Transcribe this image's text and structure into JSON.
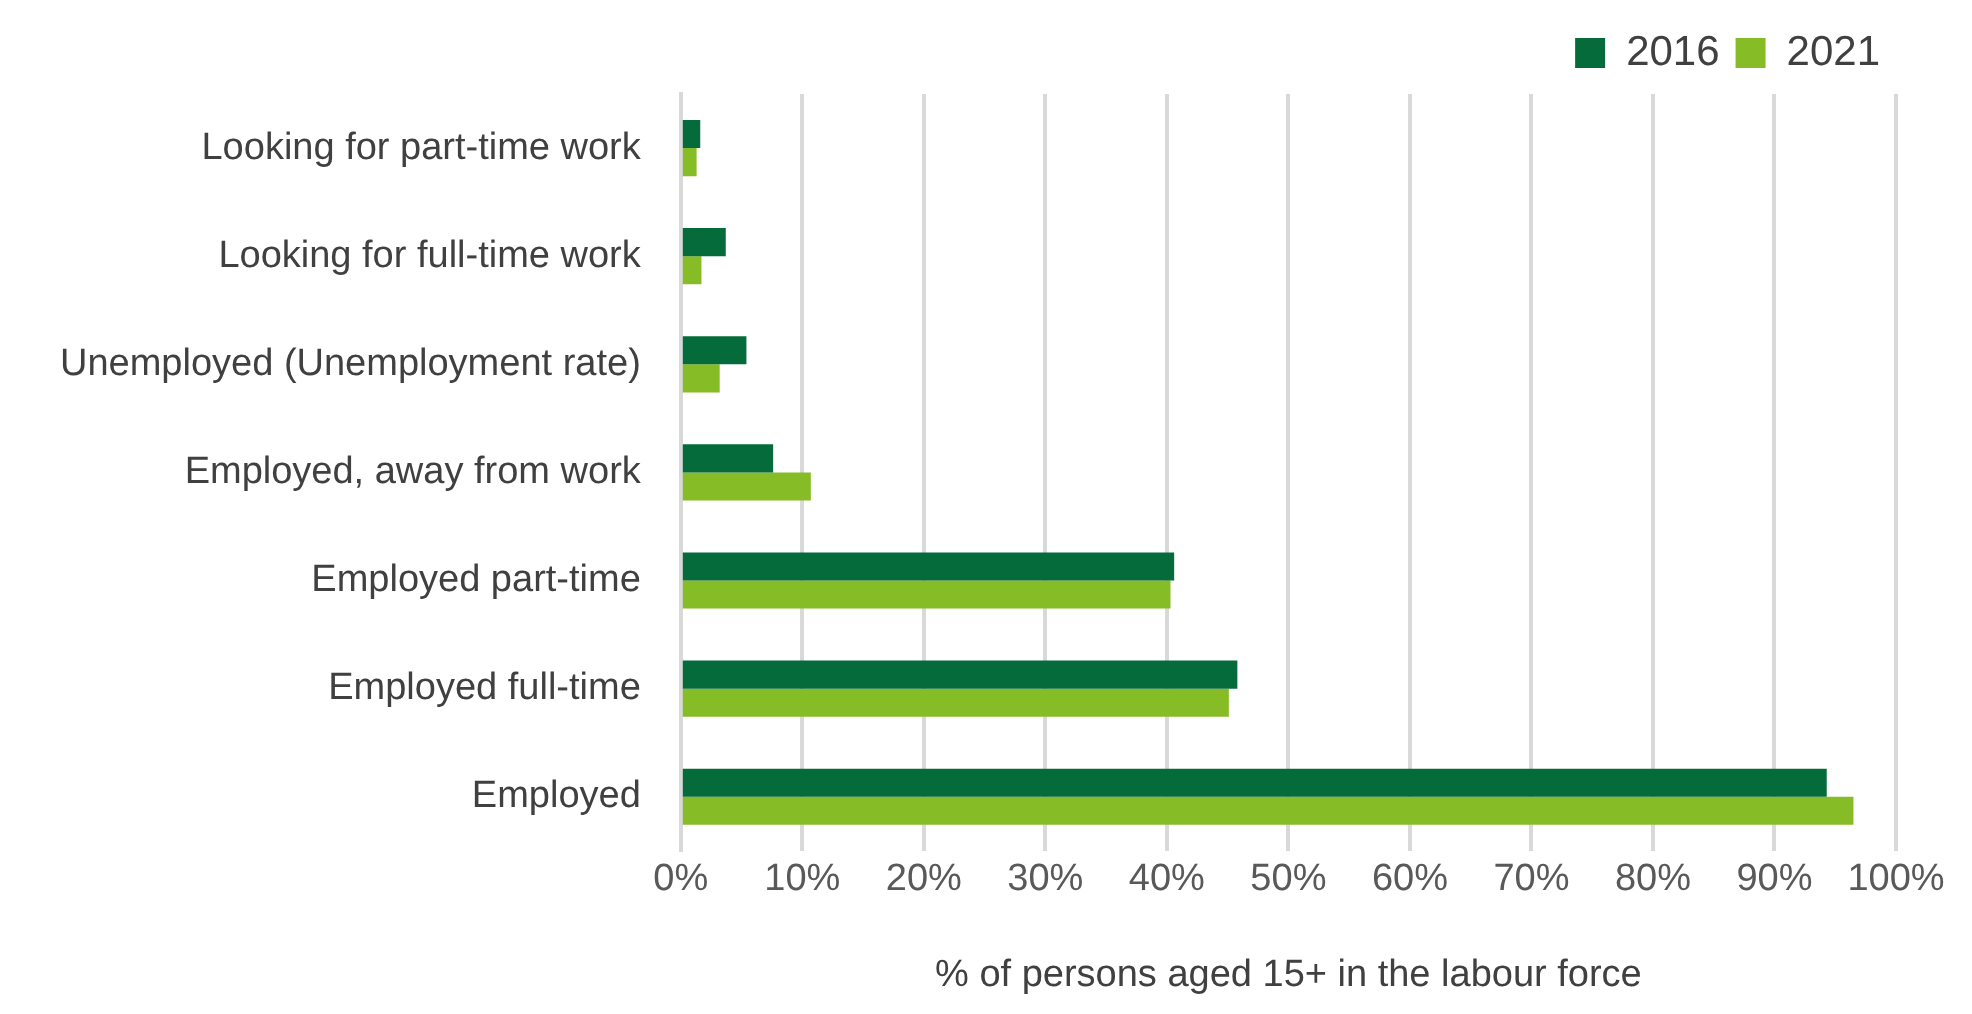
{
  "chart_data": {
    "type": "bar",
    "orientation": "horizontal",
    "xlabel": "% of persons aged 15+ in the labour force",
    "categories": [
      "Looking for part-time work",
      "Looking for full-time work",
      "Unemployed (Unemployment rate)",
      "Employed, away from work",
      "Employed part-time",
      "Employed full-time",
      "Employed"
    ],
    "series": [
      {
        "name": "2016",
        "color": "#056b3a",
        "values": [
          1.6,
          3.7,
          5.4,
          7.6,
          40.6,
          45.8,
          94.3
        ]
      },
      {
        "name": "2021",
        "color": "#86bc25",
        "values": [
          1.3,
          1.7,
          3.2,
          10.7,
          40.3,
          45.1,
          96.5
        ]
      }
    ],
    "xlim": [
      0,
      100
    ],
    "xticks": [
      {
        "value": 0,
        "label": "0%"
      },
      {
        "value": 10,
        "label": "10%"
      },
      {
        "value": 20,
        "label": "20%"
      },
      {
        "value": 30,
        "label": "30%"
      },
      {
        "value": 40,
        "label": "40%"
      },
      {
        "value": 50,
        "label": "50%"
      },
      {
        "value": 60,
        "label": "60%"
      },
      {
        "value": 70,
        "label": "70%"
      },
      {
        "value": 80,
        "label": "80%"
      },
      {
        "value": 90,
        "label": "90%"
      },
      {
        "value": 100,
        "label": "100%"
      }
    ],
    "grid": "x",
    "legend": "top right"
  }
}
